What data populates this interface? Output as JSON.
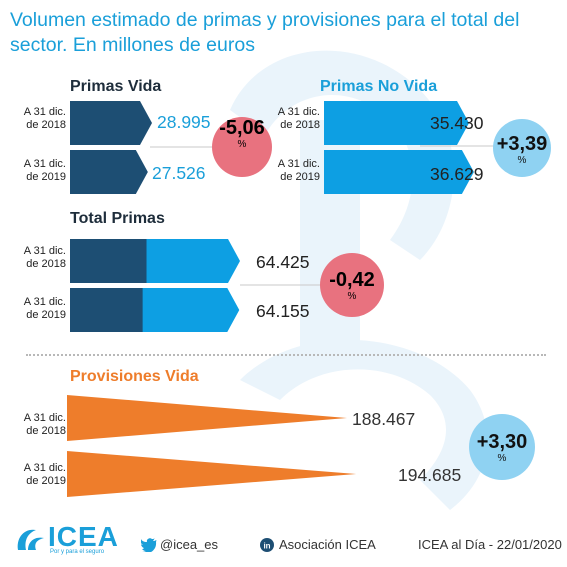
{
  "title": "Volumen estimado de primas y provisiones para el total del sector. En millones de euros",
  "colors": {
    "dark_navy": "#1d4e73",
    "cyan": "#0d9fe3",
    "orange": "#ee7d2b",
    "negative_badge": "#e8727f",
    "positive_badge": "#8fd2f2",
    "title": "#1a9fd9"
  },
  "chart_data": [
    {
      "type": "bar",
      "title": "Primas Vida",
      "categories": [
        "A 31 dic. de 2018",
        "A 31 dic. de 2019"
      ],
      "values": [
        28995,
        27526
      ],
      "value_labels": [
        "28.995",
        "27.526"
      ],
      "change_label": "-5,06",
      "change_unit": "%"
    },
    {
      "type": "bar",
      "title": "Primas No Vida",
      "categories": [
        "A 31 dic. de 2018",
        "A 31 dic. de 2019"
      ],
      "values": [
        35430,
        36629
      ],
      "value_labels": [
        "35.430",
        "36.629"
      ],
      "change_label": "+3,39",
      "change_unit": "%"
    },
    {
      "type": "bar",
      "title": "Total Primas",
      "categories": [
        "A 31 dic. de 2018",
        "A 31 dic. de 2019"
      ],
      "values": [
        64425,
        64155
      ],
      "value_labels": [
        "64.425",
        "64.155"
      ],
      "change_label": "-0,42",
      "change_unit": "%"
    },
    {
      "type": "bar",
      "title": "Provisiones Vida",
      "categories": [
        "A 31 dic. de 2018",
        "A 31 dic. de 2019"
      ],
      "values": [
        188467,
        194685
      ],
      "value_labels": [
        "188.467",
        "194.685"
      ],
      "change_label": "+3,30",
      "change_unit": "%"
    }
  ],
  "row_label": {
    "line1": "A 31 dic.",
    "year_2018": "de 2018",
    "year_2019": "de 2019"
  },
  "footer": {
    "logo": "ICEA",
    "logo_tagline": "Por y para el seguro",
    "twitter": "@icea_es",
    "linkedin": "Asociación ICEA",
    "date": "ICEA al Día - 22/01/2020"
  }
}
